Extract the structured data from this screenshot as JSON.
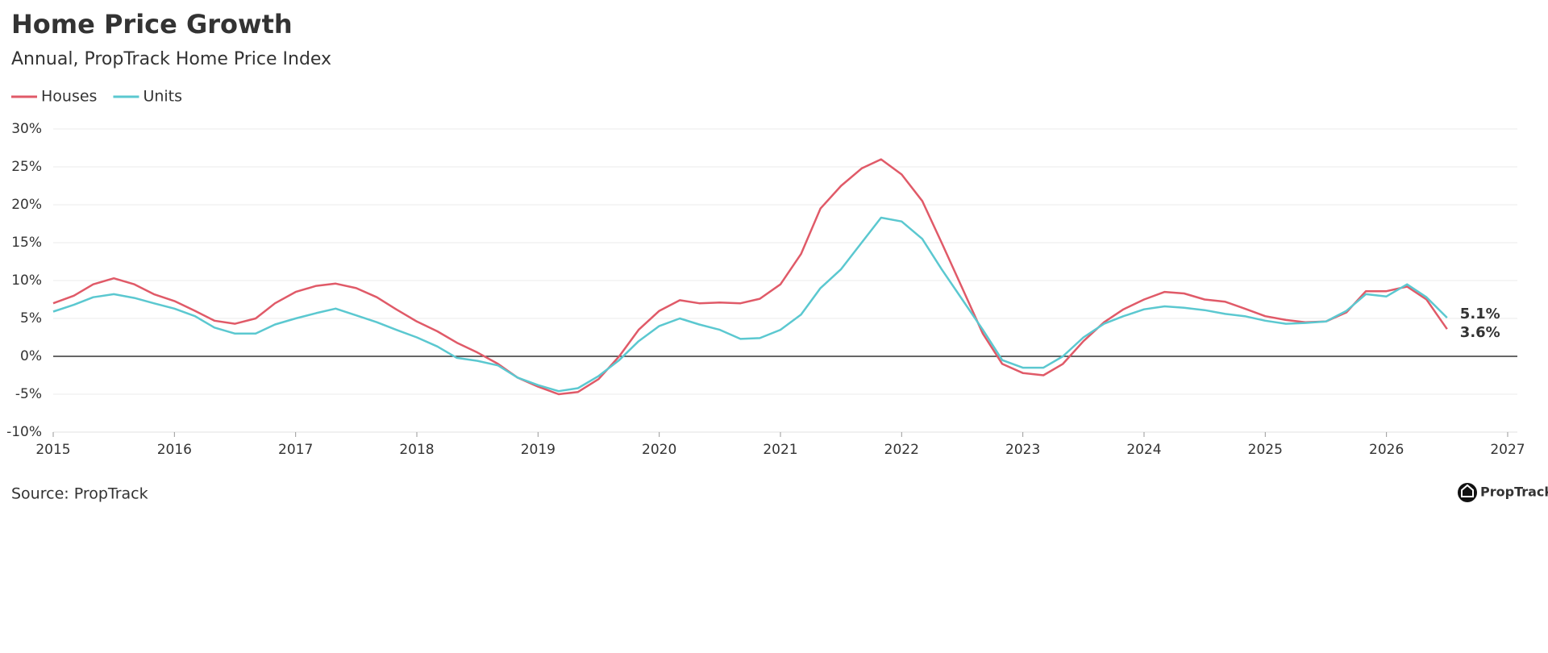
{
  "chart_data": {
    "type": "line",
    "title": "Home Price Growth",
    "subtitle": "Annual, PropTrack Home Price Index",
    "source": "Source: PropTrack",
    "brand": "PropTrack",
    "x": [
      2015.0,
      2015.17,
      2015.33,
      2015.5,
      2015.67,
      2015.83,
      2016.0,
      2016.17,
      2016.33,
      2016.5,
      2016.67,
      2016.83,
      2017.0,
      2017.17,
      2017.33,
      2017.5,
      2017.67,
      2017.83,
      2018.0,
      2018.17,
      2018.33,
      2018.5,
      2018.67,
      2018.83,
      2019.0,
      2019.17,
      2019.33,
      2019.5,
      2019.67,
      2019.83,
      2020.0,
      2020.17,
      2020.33,
      2020.5,
      2020.67,
      2020.83,
      2021.0,
      2021.17,
      2021.33,
      2021.5,
      2021.67,
      2021.83,
      2022.0,
      2022.17,
      2022.33,
      2022.5,
      2022.67,
      2022.83,
      2023.0,
      2023.17,
      2023.33,
      2023.5,
      2023.67,
      2023.83,
      2024.0,
      2024.17,
      2024.33,
      2024.5,
      2024.67,
      2024.83,
      2025.0,
      2025.17,
      2025.33,
      2025.5,
      2025.67,
      2025.83,
      2026.0,
      2026.17,
      2026.33,
      2026.5
    ],
    "series": [
      {
        "name": "Houses",
        "color": "#e05a68",
        "end_label": "3.6%",
        "values": [
          7.0,
          8.0,
          9.5,
          10.3,
          9.5,
          8.2,
          7.3,
          6.0,
          4.7,
          4.3,
          5.0,
          7.0,
          8.5,
          9.3,
          9.6,
          9.0,
          7.8,
          6.2,
          4.6,
          3.3,
          1.8,
          0.5,
          -1.0,
          -2.8,
          -4.0,
          -5.0,
          -4.7,
          -3.0,
          0.0,
          3.5,
          6.0,
          7.4,
          7.0,
          7.1,
          7.0,
          7.6,
          9.5,
          13.5,
          19.5,
          22.5,
          24.8,
          26.0,
          24.0,
          20.5,
          15.0,
          9.0,
          3.0,
          -1.0,
          -2.2,
          -2.5,
          -1.0,
          2.0,
          4.5,
          6.2,
          7.5,
          8.5,
          8.3,
          7.5,
          7.2,
          6.3,
          5.3,
          4.8,
          4.5,
          4.6,
          5.8,
          8.6,
          8.6,
          9.2,
          7.5,
          3.6
        ]
      },
      {
        "name": "Units",
        "color": "#5bc8d0",
        "end_label": "5.1%",
        "values": [
          5.9,
          6.8,
          7.8,
          8.2,
          7.7,
          7.0,
          6.3,
          5.3,
          3.8,
          3.0,
          3.0,
          4.2,
          5.0,
          5.7,
          6.3,
          5.4,
          4.5,
          3.5,
          2.5,
          1.3,
          -0.2,
          -0.6,
          -1.2,
          -2.8,
          -3.8,
          -4.6,
          -4.2,
          -2.6,
          -0.5,
          2.0,
          4.0,
          5.0,
          4.2,
          3.5,
          2.3,
          2.4,
          3.5,
          5.5,
          9.0,
          11.5,
          15.0,
          18.3,
          17.8,
          15.5,
          11.5,
          7.5,
          3.5,
          -0.5,
          -1.5,
          -1.5,
          0.0,
          2.5,
          4.3,
          5.3,
          6.2,
          6.6,
          6.4,
          6.1,
          5.6,
          5.3,
          4.7,
          4.3,
          4.4,
          4.6,
          6.0,
          8.2,
          7.9,
          9.5,
          7.8,
          5.1
        ]
      }
    ],
    "xlim": [
      2015,
      2027.08
    ],
    "xticks": [
      2015,
      2016,
      2017,
      2018,
      2019,
      2020,
      2021,
      2022,
      2023,
      2024,
      2025,
      2026,
      2027
    ],
    "ylim": [
      -10,
      30
    ],
    "yticks": [
      {
        "value": -10,
        "label": "-10%"
      },
      {
        "value": -5,
        "label": "-5%"
      },
      {
        "value": 0,
        "label": "0%"
      },
      {
        "value": 5,
        "label": "5%"
      },
      {
        "value": 10,
        "label": "10%"
      },
      {
        "value": 15,
        "label": "15%"
      },
      {
        "value": 20,
        "label": "20%"
      },
      {
        "value": 25,
        "label": "25%"
      },
      {
        "value": 30,
        "label": "30%"
      }
    ],
    "grid": true,
    "legend": "top-left"
  }
}
